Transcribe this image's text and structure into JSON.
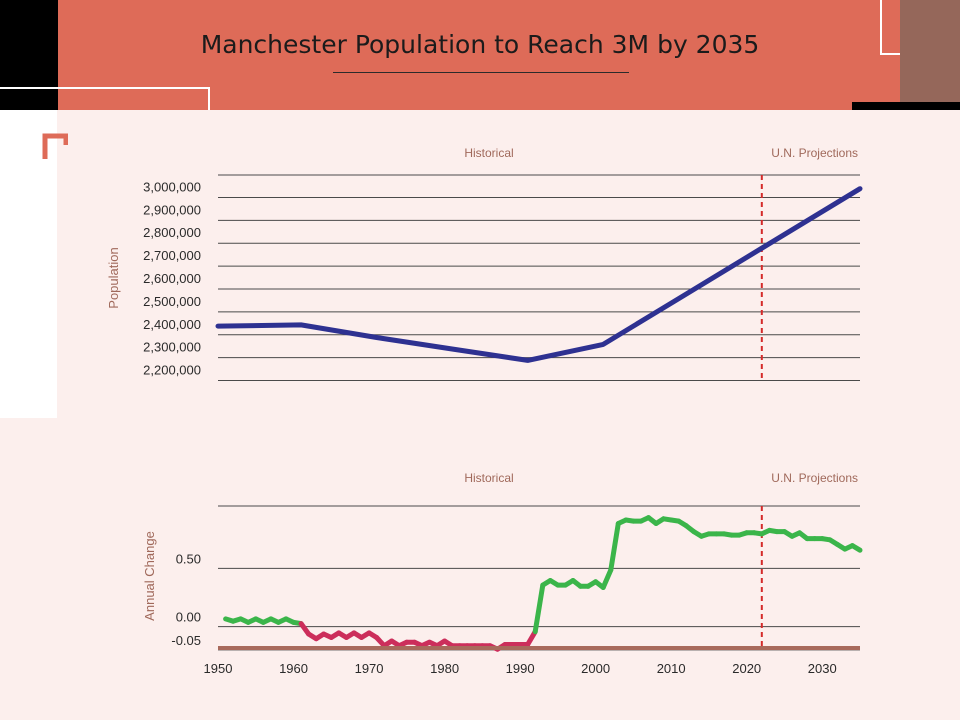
{
  "page": {
    "title": "Manchester Population to Reach 3M by 2035"
  },
  "colors": {
    "header": "#de6b58",
    "panel": "#fcefed",
    "population_line": "#2e3191",
    "projection_divider": "#d42a2a",
    "growth_positive": "#3bb54a",
    "growth_negative": "#cc2e5b",
    "axis_baseline": "#a86a5c",
    "section_label": "#a0695b"
  },
  "chart_data": [
    {
      "type": "line",
      "ylabel": "Population",
      "section_labels": [
        "Historical",
        "U.N. Projections"
      ],
      "y_ticks": [
        "3,000,000",
        "2,900,000",
        "2,800,000",
        "2,700,000",
        "2,600,000",
        "2,500,000",
        "2,400,000",
        "2,300,000",
        "2,200,000"
      ],
      "ylim": [
        2150000,
        3050000
      ],
      "xlim": [
        1950,
        2035
      ],
      "grid": true,
      "projection_start": 2022,
      "series": [
        {
          "x": [
            1950,
            1961,
            1971,
            1981,
            1991,
            2001,
            2011,
            2022,
            2035
          ],
          "values": [
            2390000,
            2395000,
            2340000,
            2290000,
            2240000,
            2310000,
            2510000,
            2730000,
            2990000
          ]
        }
      ]
    },
    {
      "type": "line",
      "ylabel": "Annual Change",
      "section_labels": [
        "Historical",
        "U.N. Projections"
      ],
      "y_ticks": [
        "0.50",
        "0.00",
        "-0.05"
      ],
      "x_ticks": [
        "1950",
        "1960",
        "1970",
        "1980",
        "1990",
        "2000",
        "2010",
        "2020",
        "2030"
      ],
      "ylim": [
        -0.27,
        0.95
      ],
      "xlim": [
        1950,
        2035
      ],
      "grid": true,
      "projection_start": 2022,
      "series": [
        {
          "x": [
            1951,
            1952,
            1953,
            1954,
            1955,
            1956,
            1957,
            1958,
            1959,
            1960,
            1961,
            1962,
            1963,
            1964,
            1965,
            1966,
            1967,
            1968,
            1969,
            1970,
            1971,
            1972,
            1973,
            1974,
            1975,
            1976,
            1977,
            1978,
            1979,
            1980,
            1981,
            1982,
            1983,
            1984,
            1985,
            1986,
            1987,
            1988,
            1989,
            1990,
            1991,
            1992,
            1993,
            1994,
            1995,
            1996,
            1997,
            1998,
            1999,
            2000,
            2001,
            2002,
            2003,
            2004,
            2005,
            2006,
            2007,
            2008,
            2009,
            2010,
            2011,
            2012,
            2013,
            2014,
            2015,
            2016,
            2017,
            2018,
            2019,
            2020,
            2021,
            2022,
            2023,
            2024,
            2025,
            2026,
            2027,
            2028,
            2029,
            2030,
            2031,
            2032,
            2033,
            2034,
            2035
          ],
          "values": [
            -0.02,
            -0.04,
            -0.02,
            -0.05,
            -0.02,
            -0.05,
            -0.02,
            -0.05,
            -0.02,
            -0.05,
            -0.06,
            -0.15,
            -0.19,
            -0.15,
            -0.18,
            -0.14,
            -0.18,
            -0.14,
            -0.18,
            -0.14,
            -0.18,
            -0.25,
            -0.21,
            -0.25,
            -0.22,
            -0.22,
            -0.25,
            -0.22,
            -0.25,
            -0.21,
            -0.25,
            -0.25,
            -0.25,
            -0.25,
            -0.25,
            -0.25,
            -0.28,
            -0.24,
            -0.24,
            -0.24,
            -0.24,
            -0.13,
            0.27,
            0.31,
            0.27,
            0.27,
            0.31,
            0.26,
            0.26,
            0.3,
            0.25,
            0.4,
            0.8,
            0.83,
            0.82,
            0.82,
            0.85,
            0.8,
            0.84,
            0.83,
            0.82,
            0.78,
            0.73,
            0.69,
            0.71,
            0.71,
            0.71,
            0.7,
            0.7,
            0.72,
            0.72,
            0.71,
            0.74,
            0.73,
            0.73,
            0.69,
            0.72,
            0.67,
            0.67,
            0.67,
            0.66,
            0.62,
            0.58,
            0.61,
            0.57
          ]
        }
      ]
    }
  ]
}
